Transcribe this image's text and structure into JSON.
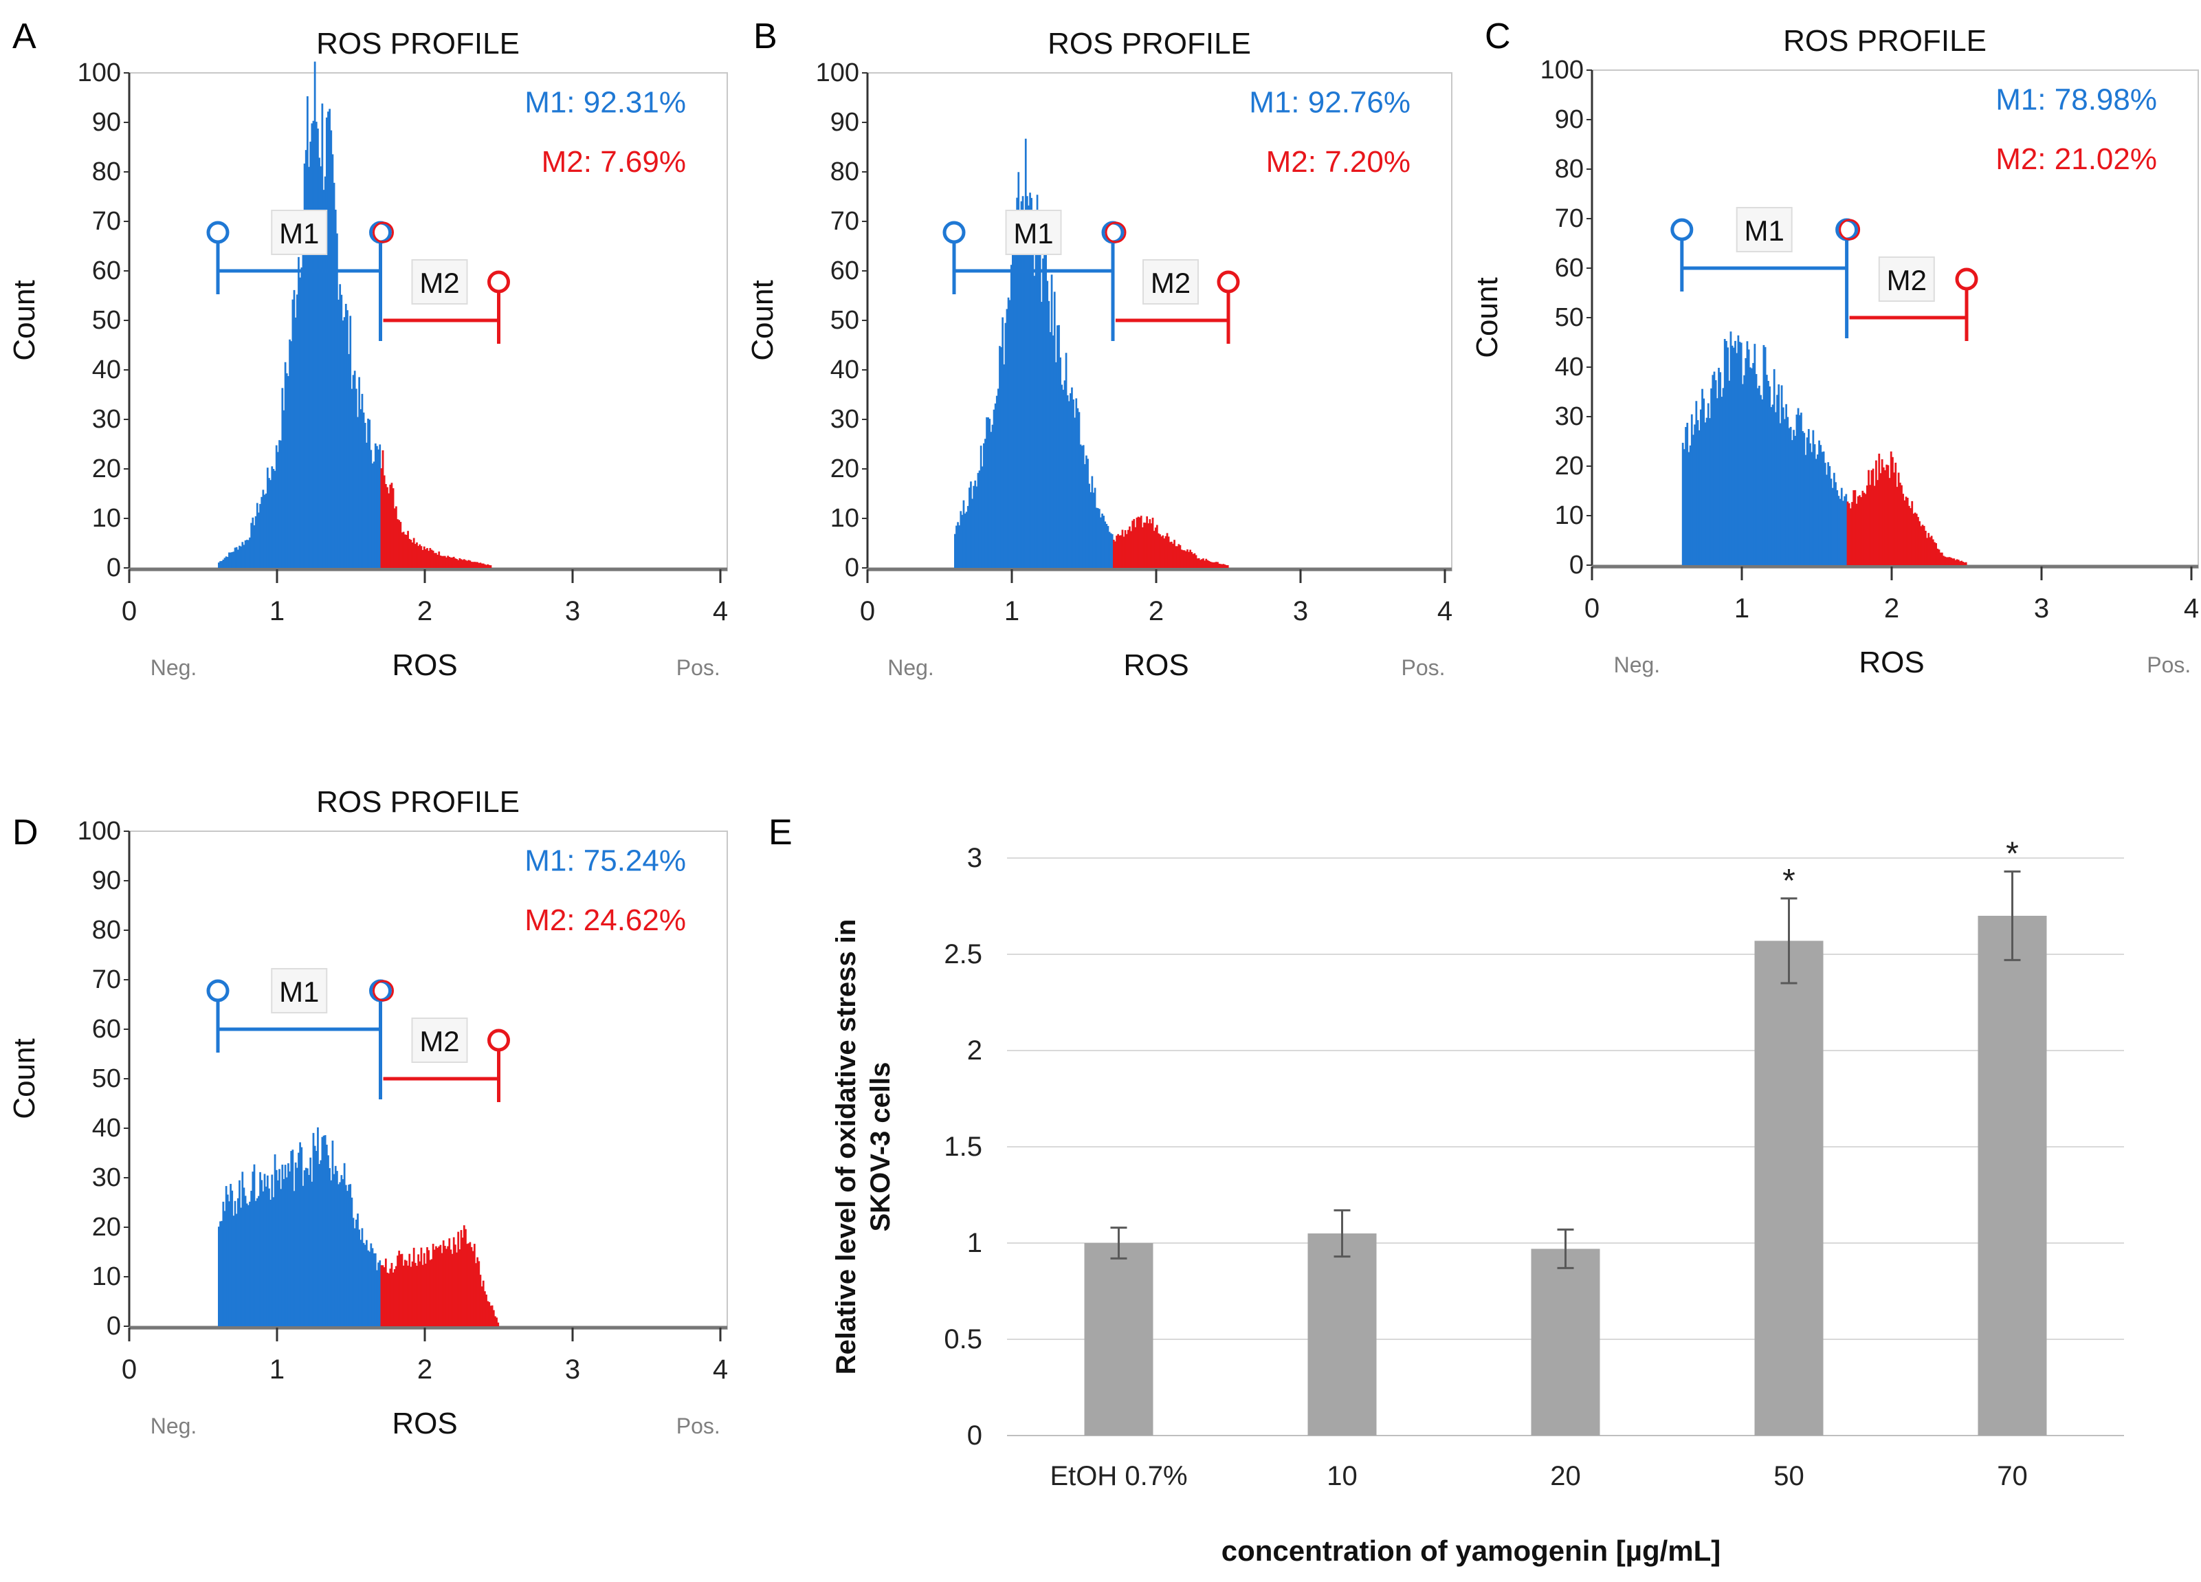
{
  "chart_data": [
    {
      "panel": "A",
      "type": "histogram",
      "title": "ROS PROFILE",
      "xlabel": "ROS",
      "ylabel": "Count",
      "xlim": [
        0,
        4
      ],
      "ylim": [
        0,
        100
      ],
      "xticks": [
        "0",
        "1",
        "2",
        "3",
        "4"
      ],
      "yticks": [
        "0",
        "10",
        "20",
        "30",
        "40",
        "50",
        "60",
        "70",
        "80",
        "90",
        "100"
      ],
      "neg_label": "Neg.",
      "pos_label": "Pos.",
      "m1_pct": "M1: 92.31%",
      "m2_pct": "M2: 7.69%",
      "m1_label": "M1",
      "m2_label": "M2",
      "gates": {
        "m1": [
          0.6,
          1.7
        ],
        "m2": [
          1.7,
          2.5
        ]
      },
      "distribution": [
        {
          "x": 0.6,
          "y": 1
        },
        {
          "x": 0.8,
          "y": 6
        },
        {
          "x": 1.0,
          "y": 24
        },
        {
          "x": 1.1,
          "y": 50
        },
        {
          "x": 1.2,
          "y": 85
        },
        {
          "x": 1.25,
          "y": 96
        },
        {
          "x": 1.35,
          "y": 85
        },
        {
          "x": 1.45,
          "y": 55
        },
        {
          "x": 1.55,
          "y": 35
        },
        {
          "x": 1.65,
          "y": 25
        },
        {
          "x": 1.72,
          "y": 22
        },
        {
          "x": 1.85,
          "y": 8
        },
        {
          "x": 2.0,
          "y": 4
        },
        {
          "x": 2.2,
          "y": 2
        },
        {
          "x": 2.45,
          "y": 0.5
        }
      ]
    },
    {
      "panel": "B",
      "type": "histogram",
      "title": "ROS PROFILE",
      "xlabel": "ROS",
      "ylabel": "Count",
      "xlim": [
        0,
        4
      ],
      "ylim": [
        0,
        100
      ],
      "xticks": [
        "0",
        "1",
        "2",
        "3",
        "4"
      ],
      "yticks": [
        "0",
        "10",
        "20",
        "30",
        "40",
        "50",
        "60",
        "70",
        "80",
        "90",
        "100"
      ],
      "neg_label": "Neg.",
      "pos_label": "Pos.",
      "m1_pct": "M1: 92.76%",
      "m2_pct": "M2: 7.20%",
      "m1_label": "M1",
      "m2_label": "M2",
      "gates": {
        "m1": [
          0.6,
          1.7
        ],
        "m2": [
          1.7,
          2.5
        ]
      },
      "distribution": [
        {
          "x": 0.6,
          "y": 8
        },
        {
          "x": 0.75,
          "y": 18
        },
        {
          "x": 0.9,
          "y": 40
        },
        {
          "x": 1.0,
          "y": 60
        },
        {
          "x": 1.08,
          "y": 82
        },
        {
          "x": 1.15,
          "y": 72
        },
        {
          "x": 1.3,
          "y": 50
        },
        {
          "x": 1.45,
          "y": 30
        },
        {
          "x": 1.6,
          "y": 12
        },
        {
          "x": 1.7,
          "y": 6
        },
        {
          "x": 1.85,
          "y": 9
        },
        {
          "x": 1.95,
          "y": 10
        },
        {
          "x": 2.1,
          "y": 6
        },
        {
          "x": 2.3,
          "y": 2
        },
        {
          "x": 2.5,
          "y": 0.5
        }
      ]
    },
    {
      "panel": "C",
      "type": "histogram",
      "title": "ROS PROFILE",
      "xlabel": "ROS",
      "ylabel": "Count",
      "xlim": [
        0,
        4
      ],
      "ylim": [
        0,
        100
      ],
      "xticks": [
        "0",
        "1",
        "2",
        "3",
        "4"
      ],
      "yticks": [
        "0",
        "10",
        "20",
        "30",
        "40",
        "50",
        "60",
        "70",
        "80",
        "90",
        "100"
      ],
      "neg_label": "Neg.",
      "pos_label": "Pos.",
      "m1_pct": "M1: 78.98%",
      "m2_pct": "M2: 21.02%",
      "m1_label": "M1",
      "m2_label": "M2",
      "gates": {
        "m1": [
          0.6,
          1.7
        ],
        "m2": [
          1.7,
          2.5
        ]
      },
      "distribution": [
        {
          "x": 0.6,
          "y": 25
        },
        {
          "x": 0.75,
          "y": 33
        },
        {
          "x": 0.9,
          "y": 42
        },
        {
          "x": 1.0,
          "y": 44
        },
        {
          "x": 1.15,
          "y": 40
        },
        {
          "x": 1.3,
          "y": 32
        },
        {
          "x": 1.45,
          "y": 26
        },
        {
          "x": 1.6,
          "y": 18
        },
        {
          "x": 1.7,
          "y": 13
        },
        {
          "x": 1.8,
          "y": 16
        },
        {
          "x": 1.9,
          "y": 20
        },
        {
          "x": 1.95,
          "y": 23
        },
        {
          "x": 2.05,
          "y": 18
        },
        {
          "x": 2.2,
          "y": 8
        },
        {
          "x": 2.35,
          "y": 2
        },
        {
          "x": 2.5,
          "y": 0.5
        }
      ]
    },
    {
      "panel": "D",
      "type": "histogram",
      "title": "ROS PROFILE",
      "xlabel": "ROS",
      "ylabel": "Count",
      "xlim": [
        0,
        4
      ],
      "ylim": [
        0,
        100
      ],
      "xticks": [
        "0",
        "1",
        "2",
        "3",
        "4"
      ],
      "yticks": [
        "0",
        "10",
        "20",
        "30",
        "40",
        "50",
        "60",
        "70",
        "80",
        "90",
        "100"
      ],
      "neg_label": "Neg.",
      "pos_label": "Pos.",
      "m1_pct": "M1: 75.24%",
      "m2_pct": "M2: 24.62%",
      "m1_label": "M1",
      "m2_label": "M2",
      "gates": {
        "m1": [
          0.6,
          1.7
        ],
        "m2": [
          1.7,
          2.5
        ]
      },
      "distribution": [
        {
          "x": 0.6,
          "y": 24
        },
        {
          "x": 0.75,
          "y": 28
        },
        {
          "x": 0.9,
          "y": 30
        },
        {
          "x": 1.05,
          "y": 32
        },
        {
          "x": 1.2,
          "y": 35
        },
        {
          "x": 1.32,
          "y": 37
        },
        {
          "x": 1.45,
          "y": 30
        },
        {
          "x": 1.58,
          "y": 18
        },
        {
          "x": 1.7,
          "y": 12
        },
        {
          "x": 1.85,
          "y": 14
        },
        {
          "x": 2.0,
          "y": 15
        },
        {
          "x": 2.15,
          "y": 17
        },
        {
          "x": 2.3,
          "y": 19
        },
        {
          "x": 2.4,
          "y": 8
        },
        {
          "x": 2.5,
          "y": 0.5
        }
      ]
    },
    {
      "panel": "E",
      "type": "bar",
      "categories": [
        "EtOH 0.7%",
        "10",
        "20",
        "50",
        "70"
      ],
      "values": [
        1.0,
        1.05,
        0.97,
        2.57,
        2.7
      ],
      "errors": [
        0.08,
        0.12,
        0.1,
        0.22,
        0.23
      ],
      "significance": [
        "",
        "",
        "",
        "*",
        "*"
      ],
      "ylabel_line1": "Relative level of oxidative stress in",
      "ylabel_line2": "SKOV-3 cells",
      "xlabel": "concentration of yamogenin [µg/mL]",
      "ylim": [
        0,
        3
      ],
      "yticks": [
        "0",
        "0.5",
        "1",
        "1.5",
        "2",
        "2.5",
        "3"
      ],
      "grid": true
    }
  ],
  "colors": {
    "m1": "#1f78d4",
    "m2": "#e8161b",
    "bar": "#a6a6a6",
    "error": "#595959",
    "grid": "#d9d9d9",
    "axis_gray": "#7f7f7f",
    "baseline_green": "#3a8a3a"
  }
}
